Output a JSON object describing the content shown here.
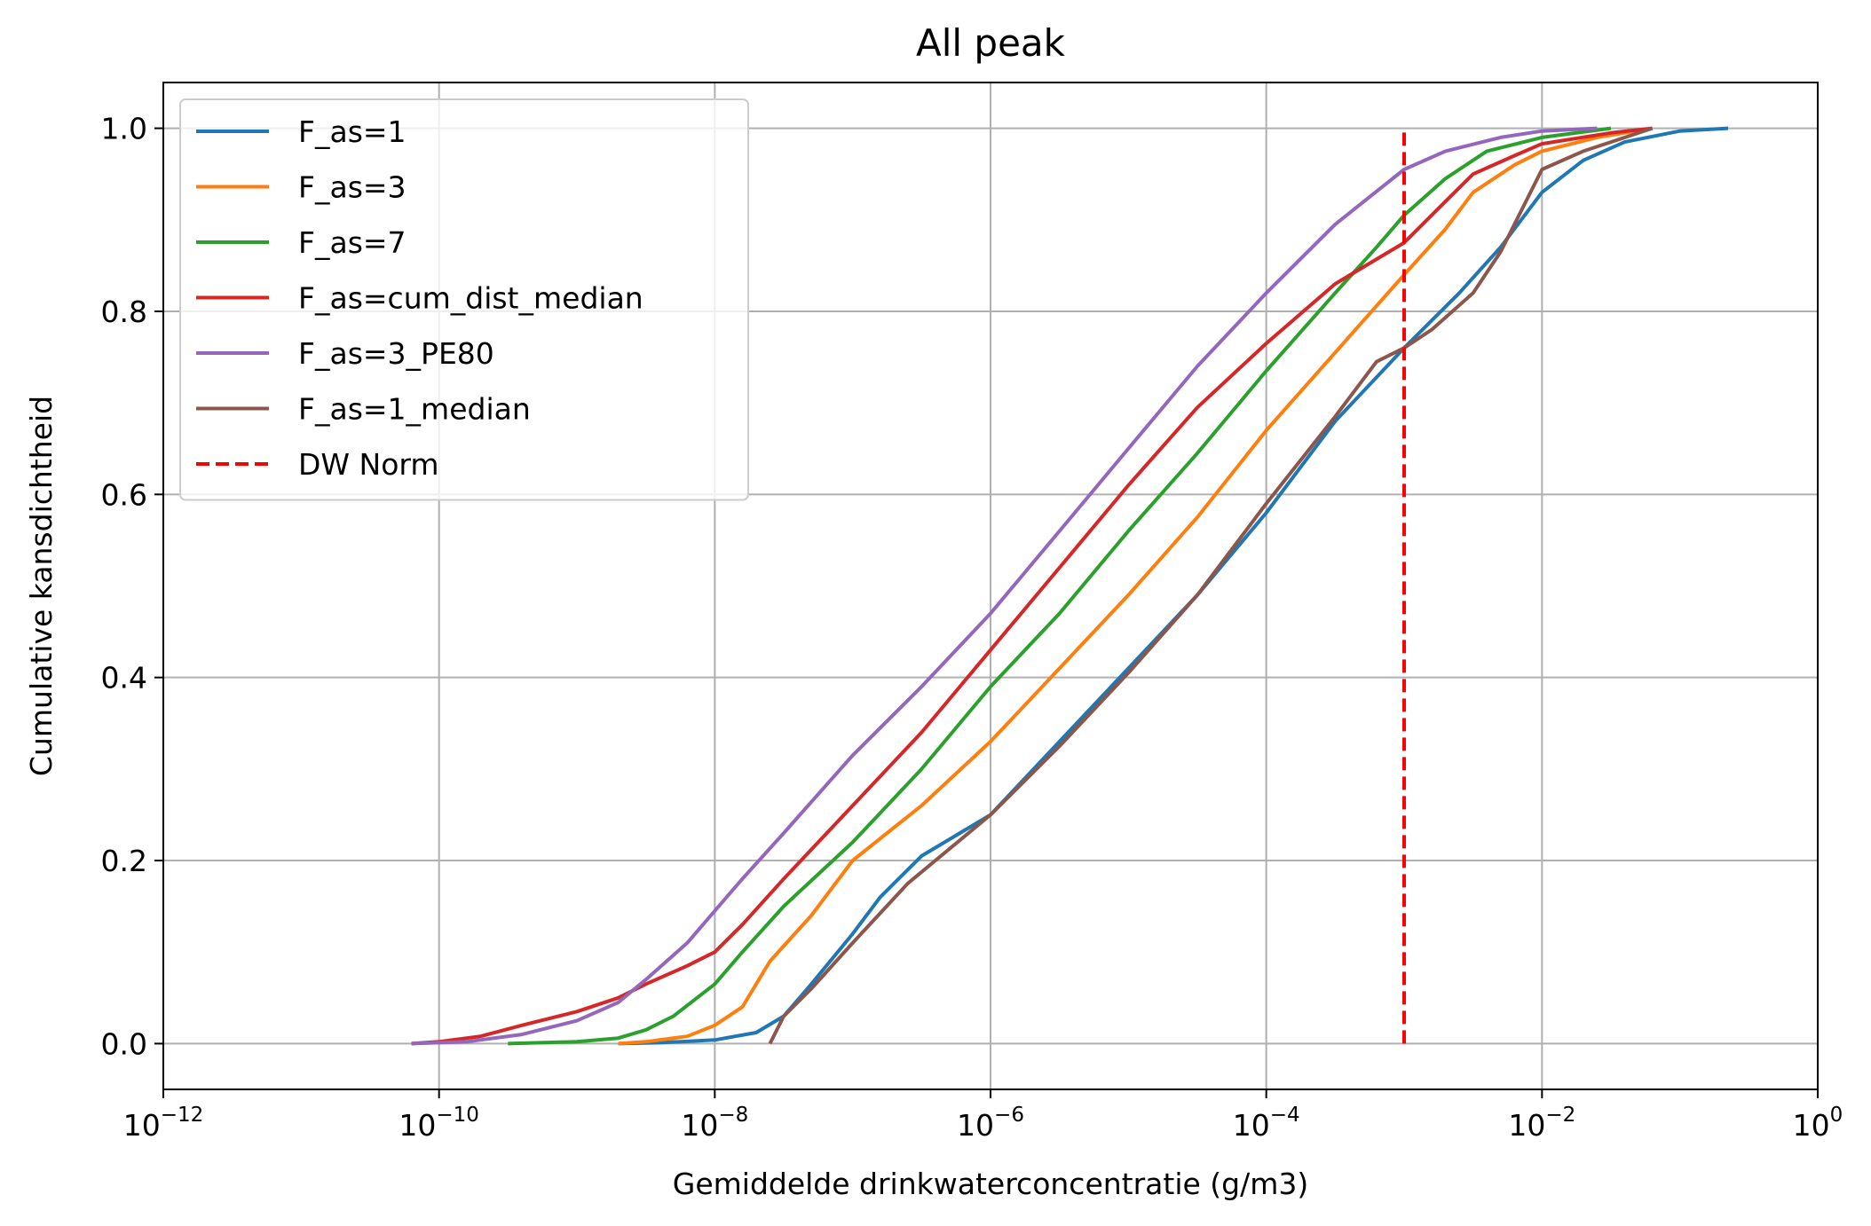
{
  "chart_data": {
    "type": "line",
    "title": "All peak",
    "xlabel": "Gemiddelde drinkwaterconcentratie (g/m3)",
    "ylabel": "Cumulative kansdichtheid",
    "xscale": "log",
    "xlim_log10": [
      -12,
      0
    ],
    "ylim": [
      -0.05,
      1.05
    ],
    "grid": true,
    "legend_position": "upper-left",
    "x_ticks": [
      {
        "base": "10",
        "exp": "−12",
        "value": -12
      },
      {
        "base": "10",
        "exp": "−10",
        "value": -10
      },
      {
        "base": "10",
        "exp": "−8",
        "value": -8
      },
      {
        "base": "10",
        "exp": "−6",
        "value": -6
      },
      {
        "base": "10",
        "exp": "−4",
        "value": -4
      },
      {
        "base": "10",
        "exp": "−2",
        "value": -2
      },
      {
        "base": "10",
        "exp": "0",
        "value": 0
      }
    ],
    "y_ticks": [
      {
        "label": "0.0",
        "value": 0.0
      },
      {
        "label": "0.2",
        "value": 0.2
      },
      {
        "label": "0.4",
        "value": 0.4
      },
      {
        "label": "0.6",
        "value": 0.6
      },
      {
        "label": "0.8",
        "value": 0.8
      },
      {
        "label": "1.0",
        "value": 1.0
      }
    ],
    "series": [
      {
        "name": "F_as=1",
        "color": "#1f77b4",
        "style": "solid",
        "points_log10x_y": [
          [
            -8.7,
            0
          ],
          [
            -8.4,
            0.001
          ],
          [
            -8.0,
            0.004
          ],
          [
            -7.7,
            0.012
          ],
          [
            -7.5,
            0.03
          ],
          [
            -7.3,
            0.065
          ],
          [
            -7.0,
            0.12
          ],
          [
            -6.8,
            0.16
          ],
          [
            -6.5,
            0.205
          ],
          [
            -6.0,
            0.25
          ],
          [
            -5.5,
            0.33
          ],
          [
            -5.0,
            0.41
          ],
          [
            -4.5,
            0.49
          ],
          [
            -4.0,
            0.58
          ],
          [
            -3.5,
            0.68
          ],
          [
            -3.0,
            0.76
          ],
          [
            -2.6,
            0.82
          ],
          [
            -2.3,
            0.87
          ],
          [
            -2.0,
            0.93
          ],
          [
            -1.7,
            0.965
          ],
          [
            -1.4,
            0.985
          ],
          [
            -1.0,
            0.997
          ],
          [
            -0.65,
            1.0
          ]
        ]
      },
      {
        "name": "F_as=3",
        "color": "#ff7f0e",
        "style": "solid",
        "points_log10x_y": [
          [
            -8.7,
            0
          ],
          [
            -8.5,
            0.002
          ],
          [
            -8.2,
            0.008
          ],
          [
            -8.0,
            0.02
          ],
          [
            -7.8,
            0.04
          ],
          [
            -7.6,
            0.09
          ],
          [
            -7.3,
            0.14
          ],
          [
            -7.0,
            0.2
          ],
          [
            -6.5,
            0.26
          ],
          [
            -6.0,
            0.33
          ],
          [
            -5.5,
            0.41
          ],
          [
            -5.0,
            0.49
          ],
          [
            -4.5,
            0.575
          ],
          [
            -4.0,
            0.67
          ],
          [
            -3.5,
            0.755
          ],
          [
            -3.0,
            0.84
          ],
          [
            -2.7,
            0.89
          ],
          [
            -2.5,
            0.93
          ],
          [
            -2.2,
            0.96
          ],
          [
            -2.0,
            0.975
          ],
          [
            -1.6,
            0.99
          ],
          [
            -1.2,
            1.0
          ]
        ]
      },
      {
        "name": "F_as=7",
        "color": "#2ca02c",
        "style": "solid",
        "points_log10x_y": [
          [
            -9.5,
            0
          ],
          [
            -9.0,
            0.002
          ],
          [
            -8.7,
            0.006
          ],
          [
            -8.5,
            0.015
          ],
          [
            -8.3,
            0.03
          ],
          [
            -8.0,
            0.065
          ],
          [
            -7.8,
            0.1
          ],
          [
            -7.5,
            0.15
          ],
          [
            -7.0,
            0.22
          ],
          [
            -6.5,
            0.3
          ],
          [
            -6.0,
            0.39
          ],
          [
            -5.5,
            0.47
          ],
          [
            -5.0,
            0.56
          ],
          [
            -4.5,
            0.645
          ],
          [
            -4.0,
            0.735
          ],
          [
            -3.5,
            0.82
          ],
          [
            -3.2,
            0.87
          ],
          [
            -3.0,
            0.905
          ],
          [
            -2.7,
            0.945
          ],
          [
            -2.4,
            0.975
          ],
          [
            -2.0,
            0.99
          ],
          [
            -1.5,
            1.0
          ]
        ]
      },
      {
        "name": "F_as=cum_dist_median",
        "color": "#d62728",
        "style": "solid",
        "points_log10x_y": [
          [
            -10.2,
            0
          ],
          [
            -10.0,
            0.002
          ],
          [
            -9.7,
            0.008
          ],
          [
            -9.4,
            0.02
          ],
          [
            -9.0,
            0.035
          ],
          [
            -8.7,
            0.05
          ],
          [
            -8.5,
            0.065
          ],
          [
            -8.2,
            0.085
          ],
          [
            -8.0,
            0.1
          ],
          [
            -7.8,
            0.13
          ],
          [
            -7.5,
            0.18
          ],
          [
            -7.0,
            0.26
          ],
          [
            -6.5,
            0.34
          ],
          [
            -6.0,
            0.43
          ],
          [
            -5.5,
            0.52
          ],
          [
            -5.0,
            0.61
          ],
          [
            -4.5,
            0.695
          ],
          [
            -4.0,
            0.765
          ],
          [
            -3.5,
            0.83
          ],
          [
            -3.0,
            0.875
          ],
          [
            -2.7,
            0.92
          ],
          [
            -2.5,
            0.95
          ],
          [
            -2.2,
            0.97
          ],
          [
            -2.0,
            0.983
          ],
          [
            -1.5,
            0.995
          ],
          [
            -1.2,
            1.0
          ]
        ]
      },
      {
        "name": "F_as=3_PE80",
        "color": "#9467bd",
        "style": "solid",
        "points_log10x_y": [
          [
            -10.2,
            0
          ],
          [
            -9.8,
            0.002
          ],
          [
            -9.4,
            0.01
          ],
          [
            -9.0,
            0.025
          ],
          [
            -8.7,
            0.045
          ],
          [
            -8.5,
            0.07
          ],
          [
            -8.2,
            0.11
          ],
          [
            -8.0,
            0.145
          ],
          [
            -7.8,
            0.18
          ],
          [
            -7.5,
            0.23
          ],
          [
            -7.0,
            0.315
          ],
          [
            -6.5,
            0.39
          ],
          [
            -6.0,
            0.47
          ],
          [
            -5.5,
            0.56
          ],
          [
            -5.0,
            0.65
          ],
          [
            -4.5,
            0.74
          ],
          [
            -4.0,
            0.82
          ],
          [
            -3.5,
            0.895
          ],
          [
            -3.0,
            0.955
          ],
          [
            -2.7,
            0.975
          ],
          [
            -2.3,
            0.99
          ],
          [
            -2.0,
            0.997
          ],
          [
            -1.6,
            1.0
          ]
        ]
      },
      {
        "name": "F_as=1_median",
        "color": "#8c564b",
        "style": "solid",
        "points_log10x_y": [
          [
            -7.6,
            0
          ],
          [
            -7.5,
            0.03
          ],
          [
            -7.3,
            0.06
          ],
          [
            -7.0,
            0.11
          ],
          [
            -6.6,
            0.175
          ],
          [
            -6.0,
            0.25
          ],
          [
            -5.5,
            0.325
          ],
          [
            -5.0,
            0.405
          ],
          [
            -4.5,
            0.49
          ],
          [
            -4.0,
            0.59
          ],
          [
            -3.5,
            0.685
          ],
          [
            -3.2,
            0.745
          ],
          [
            -3.0,
            0.76
          ],
          [
            -2.8,
            0.78
          ],
          [
            -2.5,
            0.82
          ],
          [
            -2.3,
            0.865
          ],
          [
            -2.0,
            0.955
          ],
          [
            -1.7,
            0.975
          ],
          [
            -1.5,
            0.985
          ],
          [
            -1.2,
            1.0
          ]
        ]
      },
      {
        "name": "DW Norm",
        "color": "#ff0000",
        "style": "dashed",
        "points_log10x_y": [
          [
            -3.0,
            0
          ],
          [
            -3.0,
            1.0
          ]
        ]
      }
    ]
  }
}
